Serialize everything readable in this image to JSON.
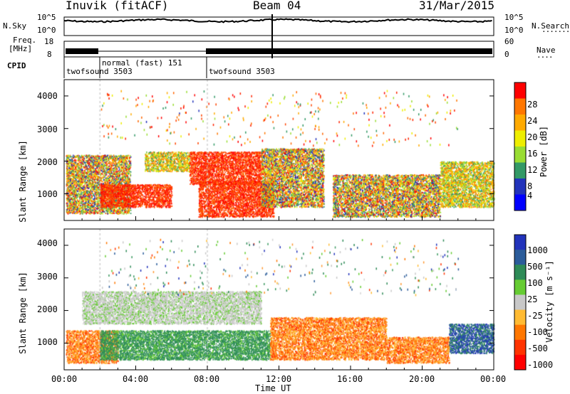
{
  "header": {
    "station": "Inuvik (fitACF)",
    "beam": "Beam 04",
    "date": "31/Mar/2015"
  },
  "top_panels": {
    "nsky_label": "N.Sky",
    "nsky_ticks": [
      "10^5",
      "10^0"
    ],
    "nsearch_label": "N.Search",
    "nsearch_ticks": [
      "10^5",
      "10^0"
    ],
    "freq_label": "Freq.",
    "freq_unit": "[MHz]",
    "freq_ticks": [
      "18",
      "8"
    ],
    "nave_label": "Nave",
    "nave_ticks": [
      "60",
      "0"
    ],
    "cpid_label": "CPID",
    "cpid_segments": [
      {
        "label": "twofsound 3503",
        "start_h": 0,
        "end_h": 2
      },
      {
        "label": "normal (fast) 151",
        "start_h": 2,
        "end_h": 8
      },
      {
        "label": "twofsound 3503",
        "start_h": 8,
        "end_h": 24
      }
    ]
  },
  "power_panel": {
    "ylabel": "Slant Range [km]",
    "yticks": [
      "4000",
      "3000",
      "2000",
      "1000"
    ],
    "colorbar_label": "Power [dB]",
    "colorbar_ticks": [
      "28",
      "24",
      "20",
      "16",
      "12",
      "8",
      "4"
    ],
    "colors": [
      "#ff0000",
      "#ff7700",
      "#ffaa00",
      "#eeee00",
      "#99dd33",
      "#339966",
      "#2233bb",
      "#0000ff"
    ]
  },
  "velocity_panel": {
    "ylabel": "Slant Range [km]",
    "yticks": [
      "4000",
      "3000",
      "2000",
      "1000"
    ],
    "colorbar_label": "Velocity [m s⁻¹]",
    "colorbar_ticks": [
      "1000",
      "500",
      "100",
      "25",
      "-25",
      "-100",
      "-500",
      "-1000"
    ],
    "colors": [
      "#2233bb",
      "#2b5c9a",
      "#2e8b57",
      "#66cc33",
      "#c8c8c8",
      "#ffbb33",
      "#ff7700",
      "#ff3300",
      "#ff0000"
    ]
  },
  "x_axis": {
    "label": "Time UT",
    "ticks": [
      "00:00",
      "04:00",
      "08:00",
      "12:00",
      "16:00",
      "20:00",
      "00:00"
    ]
  },
  "chart_data": [
    {
      "type": "heatmap",
      "title": "Power [dB]",
      "x_range_hours": [
        0,
        24
      ],
      "ylim": [
        180,
        4500
      ],
      "xlabel": "Time UT",
      "ylabel": "Slant Range [km]",
      "bands": [
        {
          "t0": 0.1,
          "t1": 3.7,
          "r0": 400,
          "r1": 2200,
          "level": "mixed"
        },
        {
          "t0": 2.0,
          "t1": 6.0,
          "r0": 600,
          "r1": 1300,
          "level": "high"
        },
        {
          "t0": 4.5,
          "t1": 7.0,
          "r0": 1700,
          "r1": 2300,
          "level": "medium"
        },
        {
          "t0": 7.5,
          "t1": 11.7,
          "r0": 300,
          "r1": 1400,
          "level": "high"
        },
        {
          "t0": 7.0,
          "t1": 11.0,
          "r0": 1300,
          "r1": 2300,
          "level": "high"
        },
        {
          "t0": 11.0,
          "t1": 14.5,
          "r0": 600,
          "r1": 2400,
          "level": "mixed"
        },
        {
          "t0": 15.0,
          "t1": 21.0,
          "r0": 300,
          "r1": 1600,
          "level": "mixed"
        },
        {
          "t0": 21.0,
          "t1": 24.0,
          "r0": 600,
          "r1": 2000,
          "level": "medium"
        }
      ]
    },
    {
      "type": "heatmap",
      "title": "Velocity [m s⁻¹]",
      "x_range_hours": [
        0,
        24
      ],
      "ylim": [
        180,
        4500
      ],
      "xlabel": "Time UT",
      "ylabel": "Slant Range [km]",
      "bands": [
        {
          "t0": 0.1,
          "t1": 3.0,
          "r0": 400,
          "r1": 1400,
          "level": "negative"
        },
        {
          "t0": 2.0,
          "t1": 11.5,
          "r0": 500,
          "r1": 1400,
          "level": "positive"
        },
        {
          "t0": 1.0,
          "t1": 11.0,
          "r0": 1600,
          "r1": 2600,
          "level": "zero"
        },
        {
          "t0": 11.5,
          "t1": 18.0,
          "r0": 500,
          "r1": 1800,
          "level": "negative"
        },
        {
          "t0": 18.0,
          "t1": 21.5,
          "r0": 400,
          "r1": 1200,
          "level": "negative"
        },
        {
          "t0": 21.5,
          "t1": 24.0,
          "r0": 700,
          "r1": 1600,
          "level": "positive_strong"
        }
      ]
    }
  ]
}
